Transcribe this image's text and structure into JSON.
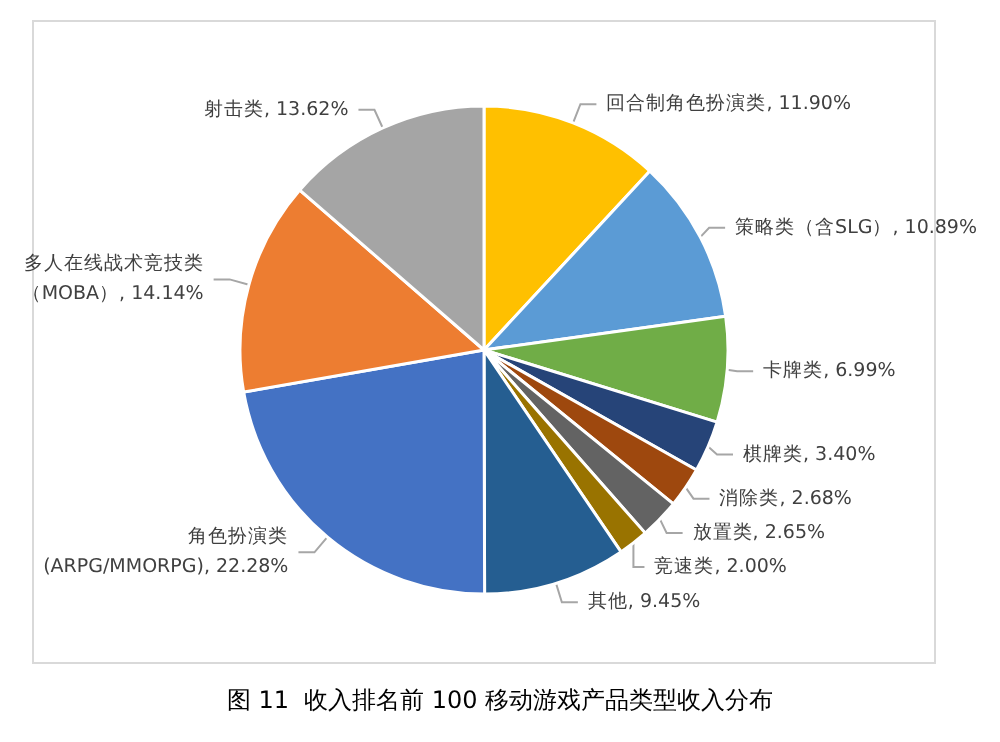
{
  "chart_data": {
    "type": "pie",
    "title": "图 11  收入排名前 100 移动游戏产品类型收入分布",
    "categories": [
      "回合制角色扮演类",
      "策略类（含SLG）",
      "卡牌类",
      "棋牌类",
      "消除类",
      "放置类",
      "竞速类",
      "其他",
      "角色扮演类\n(ARPG/MMORPG)",
      "多人在线战术竞技类（MOBA）",
      "射击类"
    ],
    "values": [
      11.9,
      10.89,
      6.99,
      3.4,
      2.68,
      2.65,
      2.0,
      9.45,
      22.28,
      14.14,
      13.62
    ],
    "value_labels": [
      "11.90%",
      "10.89%",
      "6.99%",
      "3.40%",
      "2.68%",
      "2.65%",
      "2.00%",
      "9.45%",
      "22.28%",
      "14.14%",
      "13.62%"
    ],
    "colors": [
      "#ffc000",
      "#5b9bd5",
      "#70ad47",
      "#264478",
      "#9e480e",
      "#636363",
      "#997300",
      "#255e91",
      "#4472c4",
      "#ed7d31",
      "#a5a5a5"
    ],
    "legend": false
  }
}
